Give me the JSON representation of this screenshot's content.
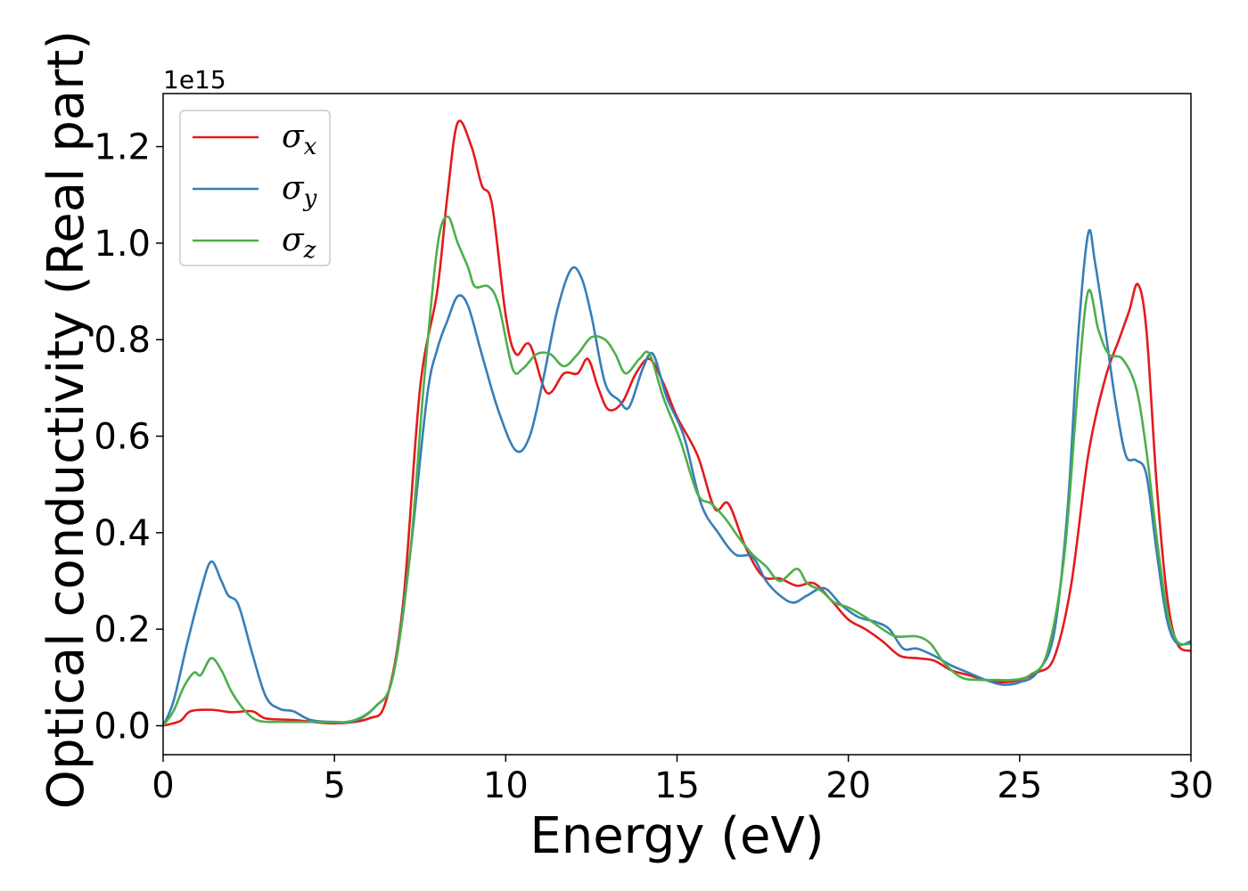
{
  "chart_data": {
    "type": "line",
    "title": "",
    "xlabel": "Energy (eV)",
    "ylabel": "Optical conductivity (Real part)",
    "y_offset_label": "1e15",
    "xlim": [
      0,
      30
    ],
    "ylim": [
      -0.06,
      1.31
    ],
    "xticks": [
      0,
      5,
      10,
      15,
      20,
      25,
      30
    ],
    "xtick_labels": [
      "0",
      "5",
      "10",
      "15",
      "20",
      "25",
      "30"
    ],
    "yticks": [
      0.0,
      0.2,
      0.4,
      0.6,
      0.8,
      1.0,
      1.2
    ],
    "ytick_labels": [
      "0.0",
      "0.2",
      "0.4",
      "0.6",
      "0.8",
      "1.0",
      "1.2"
    ],
    "grid": false,
    "legend_position": "top-left",
    "series": [
      {
        "name": "σx",
        "name_base": "σ",
        "name_sub": "x",
        "color": "#e41a1c",
        "points": [
          [
            0,
            0
          ],
          [
            0.5,
            0.01
          ],
          [
            0.8,
            0.03
          ],
          [
            1.4,
            0.033
          ],
          [
            2.0,
            0.028
          ],
          [
            2.6,
            0.03
          ],
          [
            3.0,
            0.015
          ],
          [
            3.8,
            0.012
          ],
          [
            5.0,
            0.005
          ],
          [
            6.0,
            0.015
          ],
          [
            6.5,
            0.05
          ],
          [
            7.0,
            0.25
          ],
          [
            7.5,
            0.7
          ],
          [
            8.0,
            0.9
          ],
          [
            8.3,
            1.1
          ],
          [
            8.6,
            1.25
          ],
          [
            9.0,
            1.2
          ],
          [
            9.3,
            1.12
          ],
          [
            9.6,
            1.08
          ],
          [
            10.0,
            0.85
          ],
          [
            10.3,
            0.77
          ],
          [
            10.7,
            0.79
          ],
          [
            11.2,
            0.69
          ],
          [
            11.7,
            0.73
          ],
          [
            12.1,
            0.73
          ],
          [
            12.4,
            0.76
          ],
          [
            12.7,
            0.7
          ],
          [
            13.0,
            0.655
          ],
          [
            13.4,
            0.67
          ],
          [
            13.8,
            0.73
          ],
          [
            14.2,
            0.76
          ],
          [
            14.6,
            0.71
          ],
          [
            15.0,
            0.64
          ],
          [
            15.6,
            0.56
          ],
          [
            16.1,
            0.45
          ],
          [
            16.5,
            0.46
          ],
          [
            17.0,
            0.37
          ],
          [
            17.5,
            0.31
          ],
          [
            18.0,
            0.305
          ],
          [
            18.5,
            0.29
          ],
          [
            19.0,
            0.295
          ],
          [
            19.5,
            0.26
          ],
          [
            20.0,
            0.22
          ],
          [
            20.5,
            0.2
          ],
          [
            21.0,
            0.175
          ],
          [
            21.5,
            0.145
          ],
          [
            22.0,
            0.14
          ],
          [
            22.5,
            0.135
          ],
          [
            23.0,
            0.115
          ],
          [
            23.5,
            0.105
          ],
          [
            24.0,
            0.095
          ],
          [
            24.5,
            0.09
          ],
          [
            25.0,
            0.095
          ],
          [
            25.5,
            0.11
          ],
          [
            26.0,
            0.14
          ],
          [
            26.5,
            0.29
          ],
          [
            27.0,
            0.56
          ],
          [
            27.5,
            0.72
          ],
          [
            27.9,
            0.8
          ],
          [
            28.2,
            0.86
          ],
          [
            28.45,
            0.915
          ],
          [
            28.7,
            0.82
          ],
          [
            29.0,
            0.5
          ],
          [
            29.3,
            0.27
          ],
          [
            29.6,
            0.17
          ],
          [
            30.0,
            0.155
          ]
        ]
      },
      {
        "name": "σy",
        "name_base": "σ",
        "name_sub": "y",
        "color": "#377eb8",
        "points": [
          [
            0,
            0
          ],
          [
            0.3,
            0.05
          ],
          [
            0.7,
            0.17
          ],
          [
            1.1,
            0.28
          ],
          [
            1.4,
            0.34
          ],
          [
            1.7,
            0.3
          ],
          [
            1.9,
            0.27
          ],
          [
            2.2,
            0.25
          ],
          [
            2.6,
            0.15
          ],
          [
            3.0,
            0.06
          ],
          [
            3.4,
            0.035
          ],
          [
            3.8,
            0.03
          ],
          [
            4.3,
            0.012
          ],
          [
            5.0,
            0.008
          ],
          [
            5.6,
            0.01
          ],
          [
            6.2,
            0.04
          ],
          [
            6.7,
            0.1
          ],
          [
            7.2,
            0.35
          ],
          [
            7.7,
            0.68
          ],
          [
            8.0,
            0.78
          ],
          [
            8.3,
            0.84
          ],
          [
            8.6,
            0.89
          ],
          [
            8.9,
            0.87
          ],
          [
            9.3,
            0.77
          ],
          [
            9.8,
            0.65
          ],
          [
            10.3,
            0.57
          ],
          [
            10.7,
            0.6
          ],
          [
            11.1,
            0.72
          ],
          [
            11.5,
            0.86
          ],
          [
            11.9,
            0.945
          ],
          [
            12.2,
            0.93
          ],
          [
            12.5,
            0.85
          ],
          [
            12.9,
            0.71
          ],
          [
            13.3,
            0.675
          ],
          [
            13.6,
            0.66
          ],
          [
            14.0,
            0.74
          ],
          [
            14.3,
            0.77
          ],
          [
            14.7,
            0.68
          ],
          [
            15.2,
            0.6
          ],
          [
            15.7,
            0.46
          ],
          [
            16.2,
            0.4
          ],
          [
            16.7,
            0.355
          ],
          [
            17.2,
            0.35
          ],
          [
            17.6,
            0.3
          ],
          [
            18.0,
            0.27
          ],
          [
            18.4,
            0.255
          ],
          [
            18.8,
            0.27
          ],
          [
            19.3,
            0.285
          ],
          [
            19.8,
            0.25
          ],
          [
            20.3,
            0.225
          ],
          [
            20.8,
            0.215
          ],
          [
            21.2,
            0.2
          ],
          [
            21.6,
            0.16
          ],
          [
            22.0,
            0.16
          ],
          [
            22.5,
            0.145
          ],
          [
            23.0,
            0.125
          ],
          [
            23.5,
            0.11
          ],
          [
            24.0,
            0.095
          ],
          [
            24.5,
            0.085
          ],
          [
            25.0,
            0.09
          ],
          [
            25.5,
            0.11
          ],
          [
            26.0,
            0.19
          ],
          [
            26.4,
            0.45
          ],
          [
            26.7,
            0.8
          ],
          [
            27.0,
            1.02
          ],
          [
            27.2,
            0.96
          ],
          [
            27.5,
            0.82
          ],
          [
            27.8,
            0.67
          ],
          [
            28.1,
            0.56
          ],
          [
            28.4,
            0.55
          ],
          [
            28.7,
            0.52
          ],
          [
            29.0,
            0.36
          ],
          [
            29.3,
            0.22
          ],
          [
            29.6,
            0.17
          ],
          [
            30.0,
            0.175
          ]
        ]
      },
      {
        "name": "σz",
        "name_base": "σ",
        "name_sub": "z",
        "color": "#4daf4a",
        "points": [
          [
            0,
            0
          ],
          [
            0.3,
            0.03
          ],
          [
            0.6,
            0.08
          ],
          [
            0.9,
            0.11
          ],
          [
            1.1,
            0.105
          ],
          [
            1.4,
            0.14
          ],
          [
            1.7,
            0.115
          ],
          [
            2.0,
            0.07
          ],
          [
            2.4,
            0.03
          ],
          [
            2.8,
            0.01
          ],
          [
            3.5,
            0.008
          ],
          [
            4.5,
            0.008
          ],
          [
            5.5,
            0.01
          ],
          [
            6.2,
            0.04
          ],
          [
            6.7,
            0.1
          ],
          [
            7.2,
            0.35
          ],
          [
            7.6,
            0.7
          ],
          [
            8.0,
            0.99
          ],
          [
            8.3,
            1.055
          ],
          [
            8.6,
            1.0
          ],
          [
            8.9,
            0.95
          ],
          [
            9.1,
            0.91
          ],
          [
            9.5,
            0.91
          ],
          [
            9.8,
            0.87
          ],
          [
            10.2,
            0.74
          ],
          [
            10.5,
            0.74
          ],
          [
            10.9,
            0.77
          ],
          [
            11.3,
            0.77
          ],
          [
            11.7,
            0.745
          ],
          [
            12.1,
            0.77
          ],
          [
            12.5,
            0.805
          ],
          [
            12.9,
            0.8
          ],
          [
            13.2,
            0.77
          ],
          [
            13.5,
            0.73
          ],
          [
            13.9,
            0.76
          ],
          [
            14.2,
            0.77
          ],
          [
            14.6,
            0.68
          ],
          [
            15.1,
            0.59
          ],
          [
            15.6,
            0.48
          ],
          [
            16.0,
            0.46
          ],
          [
            16.4,
            0.43
          ],
          [
            16.8,
            0.39
          ],
          [
            17.2,
            0.355
          ],
          [
            17.6,
            0.33
          ],
          [
            18.0,
            0.3
          ],
          [
            18.5,
            0.325
          ],
          [
            18.8,
            0.295
          ],
          [
            19.2,
            0.28
          ],
          [
            19.6,
            0.255
          ],
          [
            20.0,
            0.245
          ],
          [
            20.5,
            0.225
          ],
          [
            21.0,
            0.2
          ],
          [
            21.4,
            0.185
          ],
          [
            22.0,
            0.185
          ],
          [
            22.4,
            0.17
          ],
          [
            22.8,
            0.13
          ],
          [
            23.3,
            0.1
          ],
          [
            23.8,
            0.095
          ],
          [
            24.3,
            0.095
          ],
          [
            24.8,
            0.095
          ],
          [
            25.3,
            0.105
          ],
          [
            25.8,
            0.15
          ],
          [
            26.3,
            0.35
          ],
          [
            26.7,
            0.7
          ],
          [
            27.0,
            0.9
          ],
          [
            27.3,
            0.82
          ],
          [
            27.6,
            0.77
          ],
          [
            28.0,
            0.76
          ],
          [
            28.4,
            0.7
          ],
          [
            28.7,
            0.57
          ],
          [
            29.0,
            0.39
          ],
          [
            29.3,
            0.24
          ],
          [
            29.6,
            0.175
          ],
          [
            30.0,
            0.17
          ]
        ]
      }
    ]
  }
}
